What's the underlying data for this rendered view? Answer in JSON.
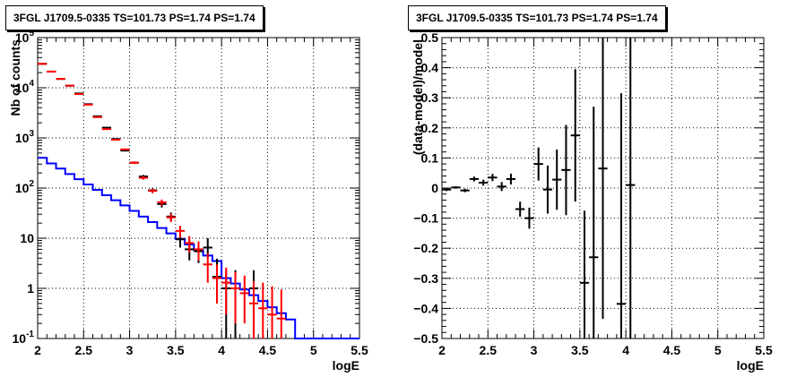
{
  "chart_data": [
    {
      "type": "line",
      "title": "3FGL J1709.5-0335 TS=101.73 PS=1.74 PS=1.74",
      "xlabel": "logE",
      "ylabel": "Nb of counts",
      "xlim": [
        2,
        5.5
      ],
      "ylim": [
        0.1,
        100000
      ],
      "yscale": "log",
      "grid": true,
      "x_ticks": [
        "2",
        "2.5",
        "3",
        "3.5",
        "4",
        "4.5",
        "5",
        "5.5"
      ],
      "y_ticks": [
        {
          "base": "10",
          "exp": "-1"
        },
        {
          "base": "1",
          "exp": ""
        },
        {
          "base": "10",
          "exp": ""
        },
        {
          "base": "10",
          "exp": "2"
        },
        {
          "base": "10",
          "exp": "3"
        },
        {
          "base": "10",
          "exp": "4"
        },
        {
          "base": "10",
          "exp": "5"
        }
      ],
      "bin_edges": [
        2.0,
        2.1,
        2.2,
        2.3,
        2.4,
        2.5,
        2.6,
        2.7,
        2.8,
        2.9,
        3.0,
        3.1,
        3.2,
        3.3,
        3.4,
        3.5,
        3.6,
        3.7,
        3.8,
        3.9,
        4.0,
        4.1,
        4.2,
        4.3,
        4.4,
        4.5,
        4.6,
        4.7,
        4.8,
        4.9,
        5.0,
        5.1,
        5.2,
        5.3,
        5.4,
        5.5
      ],
      "series": [
        {
          "kind": "step",
          "color": "#0000ff",
          "values": [
            400,
            310,
            245,
            190,
            150,
            118,
            92,
            72,
            57,
            45,
            35,
            27,
            21,
            16,
            12.5,
            9.7,
            7.5,
            5.8,
            4.5,
            3.5,
            1.6,
            1.25,
            0.95,
            0.73,
            0.56,
            0.42,
            0.32,
            0.24,
            0.1,
            0.1,
            0.1,
            0.1,
            0.1,
            0.1,
            0.1
          ]
        },
        {
          "kind": "points",
          "color": "#000000",
          "x": [
            2.05,
            2.15,
            2.25,
            2.35,
            2.45,
            2.55,
            2.65,
            2.75,
            2.85,
            2.95,
            3.05,
            3.15,
            3.25,
            3.35,
            3.45,
            3.55,
            3.65,
            3.75,
            3.85,
            3.95,
            4.05,
            4.15,
            4.35
          ],
          "y": [
            30000,
            21000,
            15000,
            11000,
            7700,
            4700,
            2700,
            1600,
            950,
            560,
            320,
            170,
            90,
            48,
            27,
            9.5,
            6,
            5.5,
            6.5,
            1.7,
            1,
            1,
            1
          ],
          "err_lo": [
            0,
            0,
            0,
            0,
            0,
            0,
            0,
            0,
            30,
            24,
            18,
            13,
            9,
            7,
            5,
            3,
            2.4,
            2.3,
            2.5,
            1.2,
            1,
            1,
            1
          ],
          "err_hi": [
            0,
            0,
            0,
            0,
            0,
            0,
            0,
            0,
            30,
            24,
            18,
            13,
            9,
            7,
            5.5,
            3.5,
            3,
            3,
            3.5,
            2.2,
            1.3,
            1.3,
            1.3
          ]
        },
        {
          "kind": "points",
          "color": "#ff0000",
          "x": [
            2.05,
            2.15,
            2.25,
            2.35,
            2.45,
            2.55,
            2.65,
            2.75,
            2.85,
            2.95,
            3.05,
            3.15,
            3.25,
            3.35,
            3.45,
            3.55,
            3.65,
            3.75,
            3.85,
            3.95,
            4.05,
            4.15,
            4.25,
            4.35,
            4.45,
            4.55,
            4.65
          ],
          "y": [
            30000,
            21000,
            15000,
            11000,
            7500,
            4600,
            2600,
            1500,
            920,
            590,
            320,
            160,
            88,
            52,
            26,
            14,
            8,
            6,
            3,
            1.6,
            1.3,
            1.0,
            0.8,
            0.5,
            0.4,
            0.3,
            0.25
          ],
          "err_lo": [
            0,
            0,
            0,
            0,
            0,
            0,
            0,
            0,
            30,
            24,
            18,
            13,
            9,
            7,
            5,
            3.7,
            2.8,
            2.4,
            1.7,
            1.1,
            1.0,
            0.8,
            0.6,
            0.4,
            0.3,
            0.25,
            0.2
          ],
          "err_hi": [
            0,
            0,
            0,
            0,
            0,
            0,
            0,
            0,
            30,
            24,
            18,
            13,
            9,
            7,
            5,
            3.7,
            3,
            2.6,
            2,
            1.4,
            1.3,
            1.1,
            1.0,
            0.9,
            0.9,
            0.8,
            0.7
          ]
        }
      ]
    },
    {
      "type": "scatter",
      "title": "3FGL J1709.5-0335 TS=101.73 PS=1.74 PS=1.74",
      "xlabel": "logE",
      "ylabel": "(data-model)/model",
      "xlim": [
        2,
        5.5
      ],
      "ylim": [
        -0.5,
        0.5
      ],
      "grid": true,
      "x_ticks": [
        "2",
        "2.5",
        "3",
        "3.5",
        "4",
        "4.5",
        "5",
        "5.5"
      ],
      "y_ticks": [
        "−0.5",
        "−0.4",
        "−0.3",
        "−0.2",
        "−0.1",
        "0",
        "0.1",
        "0.2",
        "0.3",
        "0.4",
        "0.5"
      ],
      "series": [
        {
          "kind": "points",
          "color": "#000000",
          "x": [
            2.05,
            2.15,
            2.25,
            2.35,
            2.45,
            2.55,
            2.65,
            2.75,
            2.85,
            2.95,
            3.05,
            3.15,
            3.25,
            3.35,
            3.45,
            3.55,
            3.65,
            3.75,
            3.95,
            4.05
          ],
          "y": [
            -0.005,
            0.002,
            -0.008,
            0.03,
            0.018,
            0.035,
            0.005,
            0.03,
            -0.07,
            -0.1,
            0.08,
            -0.005,
            0.028,
            0.06,
            0.175,
            -0.315,
            -0.23,
            0.065,
            -0.385,
            0.01
          ],
          "err": [
            0.005,
            0.004,
            0.006,
            0.008,
            0.01,
            0.012,
            0.015,
            0.018,
            0.025,
            0.035,
            0.055,
            0.08,
            0.1,
            0.15,
            0.22,
            0.24,
            0.5,
            0.5,
            0.7,
            0.8
          ]
        }
      ]
    }
  ]
}
